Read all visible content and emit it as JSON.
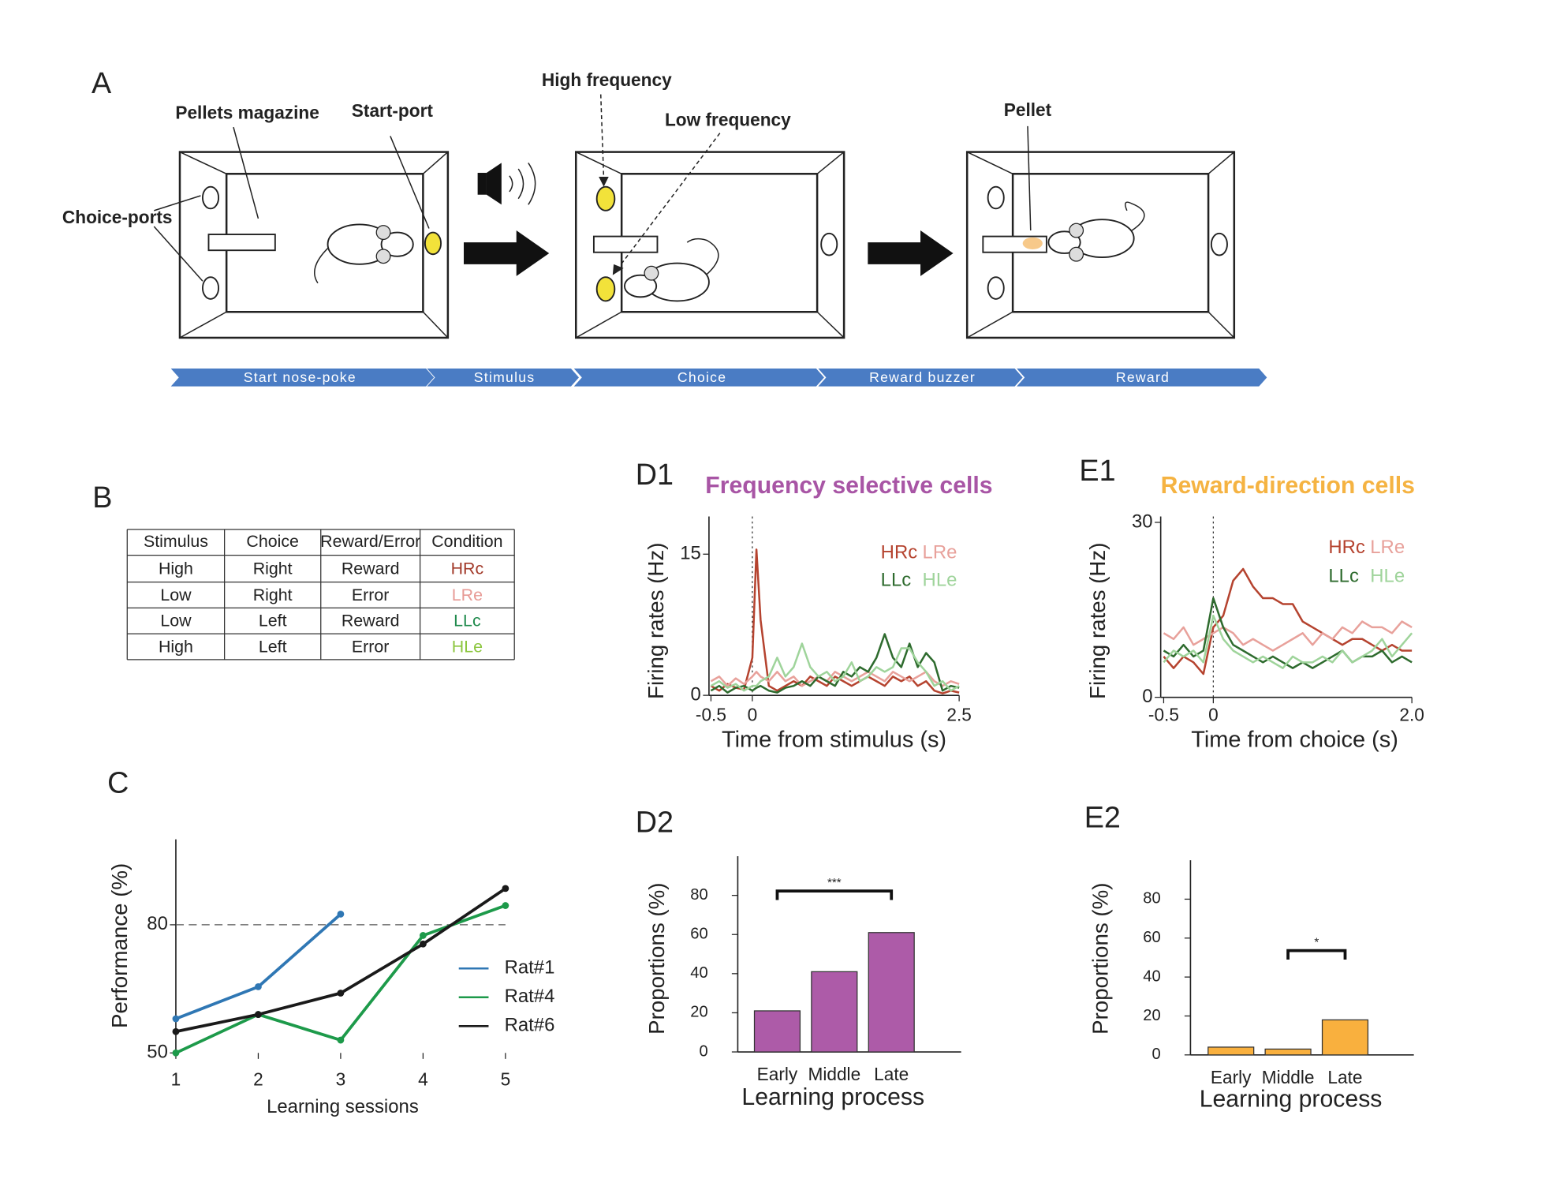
{
  "panel_labels": [
    "A",
    "B",
    "C",
    "D1",
    "E1",
    "D2",
    "E2"
  ],
  "diagram": {
    "labels": {
      "pellets_magazine": "Pellets magazine",
      "start_port": "Start-port",
      "choice_ports": "Choice-ports",
      "high_frequency": "High frequency",
      "low_frequency": "Low frequency",
      "pellet": "Pellet"
    },
    "timeline": [
      "Start nose-poke",
      "Stimulus",
      "Choice",
      "Reward buzzer",
      "Reward"
    ]
  },
  "table": {
    "header": [
      "Stimulus",
      "Choice",
      "Reward/Error",
      "Condition"
    ],
    "rows": [
      [
        "High",
        "Right",
        "Reward",
        "HRc"
      ],
      [
        "Low",
        "Right",
        "Error",
        "LRe"
      ],
      [
        "Low",
        "Left",
        "Reward",
        "LLc"
      ],
      [
        "High",
        "Left",
        "Error",
        "HLe"
      ]
    ],
    "condition_colors": [
      "#a23a2a",
      "#e79a95",
      "#1f8a4c",
      "#8cc63f"
    ]
  },
  "chart_data": [
    {
      "type": "line",
      "x_label": "Learning sessions",
      "y_label": "Performance (%)",
      "x": [
        1,
        2,
        3,
        4,
        5
      ],
      "xlim": [
        1,
        5
      ],
      "xticks": [
        1,
        2,
        3,
        4,
        5
      ],
      "ylim": [
        50,
        100
      ],
      "yticks": [
        50,
        80
      ],
      "reference_line": {
        "orientation": "horizontal",
        "value": 80,
        "style": "dashed"
      },
      "markers": true,
      "legend": "center right",
      "series": [
        {
          "name": "Rat#1",
          "color": "#2f77b4",
          "values": [
            58,
            65.5,
            82.5,
            null,
            null
          ]
        },
        {
          "name": "Rat#4",
          "color": "#1d9a4a",
          "values": [
            50,
            59,
            53,
            77.5,
            84.5
          ]
        },
        {
          "name": "Rat#6",
          "color": "#1a1a1a",
          "values": [
            55,
            59,
            64,
            75.5,
            88.5
          ]
        }
      ]
    },
    {
      "type": "line",
      "title": "Frequency selective cells",
      "title_color": "#a855a5",
      "x_label": "Time from stimulus (s)",
      "y_label": "Firing rates (Hz)",
      "x": [
        -0.5,
        -0.4,
        -0.3,
        -0.2,
        -0.1,
        0,
        0.05,
        0.1,
        0.2,
        0.3,
        0.4,
        0.5,
        0.6,
        0.7,
        0.8,
        0.9,
        1.0,
        1.1,
        1.2,
        1.3,
        1.4,
        1.5,
        1.6,
        1.7,
        1.8,
        1.9,
        2.0,
        2.1,
        2.2,
        2.3,
        2.4,
        2.5
      ],
      "xlim": [
        -0.5,
        2.5
      ],
      "xticks": [
        -0.5,
        0,
        2.5
      ],
      "ylim": [
        0,
        19
      ],
      "yticks": [
        0,
        15
      ],
      "reference_line": {
        "orientation": "vertical",
        "value": 0,
        "style": "dotted"
      },
      "legend": "upper right",
      "series": [
        {
          "name": "HRc",
          "color": "#b5432f",
          "values": [
            1,
            0.5,
            1.2,
            0.8,
            0.6,
            4,
            15.5,
            8,
            1,
            0.5,
            1,
            1.5,
            1,
            2,
            1.5,
            1,
            2,
            1.5,
            1,
            1.5,
            2,
            1.5,
            1,
            2,
            1.5,
            2,
            1,
            1.5,
            0.5,
            0.2,
            0.5,
            0.3
          ]
        },
        {
          "name": "LRe",
          "color": "#e8a19b",
          "values": [
            1.5,
            2,
            1,
            1.8,
            1.2,
            2,
            2.5,
            2,
            1.5,
            2.5,
            1.5,
            2,
            1,
            1.5,
            2,
            1.5,
            2.5,
            2,
            1.5,
            2,
            2.5,
            2,
            1.5,
            2.5,
            2,
            1.5,
            2,
            2.5,
            1.5,
            1,
            1.5,
            1.2
          ]
        },
        {
          "name": "LLc",
          "color": "#2e6b2e",
          "values": [
            0.5,
            1,
            0.3,
            0.8,
            1,
            0.5,
            0.8,
            1,
            0.5,
            0.3,
            0.8,
            1,
            1.5,
            1,
            2,
            1.5,
            1,
            2.5,
            2,
            3,
            2.5,
            4,
            6.5,
            4,
            3,
            5.5,
            3,
            4.5,
            3.5,
            0.5,
            1,
            0.8
          ]
        },
        {
          "name": "HLe",
          "color": "#9fd49b",
          "values": [
            1,
            1.5,
            0.8,
            1.2,
            0.5,
            1,
            1,
            1.5,
            2,
            4,
            2,
            3,
            5.5,
            3,
            2,
            2.5,
            1.5,
            2,
            3.5,
            1.5,
            2,
            3,
            2.5,
            3,
            5,
            5,
            3.5,
            2.5,
            1,
            1.5,
            0.5,
            1
          ]
        }
      ]
    },
    {
      "type": "line",
      "title": "Reward-direction cells",
      "title_color": "#f5b342",
      "x_label": "Time from choice (s)",
      "y_label": "Firing rates (Hz)",
      "x": [
        -0.5,
        -0.4,
        -0.3,
        -0.2,
        -0.1,
        0,
        0.1,
        0.2,
        0.3,
        0.4,
        0.5,
        0.6,
        0.7,
        0.8,
        0.9,
        1.0,
        1.1,
        1.2,
        1.3,
        1.4,
        1.5,
        1.6,
        1.7,
        1.8,
        1.9,
        2.0
      ],
      "xlim": [
        -0.5,
        2
      ],
      "xticks": [
        -0.5,
        0,
        {
          "value": 2,
          "label": "2.0"
        }
      ],
      "ylim": [
        0,
        31
      ],
      "yticks": [
        0,
        30
      ],
      "reference_line": {
        "orientation": "vertical",
        "value": 0,
        "style": "dotted"
      },
      "legend": "upper right",
      "series": [
        {
          "name": "HRc",
          "color": "#b5432f",
          "values": [
            7,
            5,
            7,
            6,
            4,
            12,
            14,
            20,
            22,
            19,
            17,
            17,
            16,
            16,
            13,
            12,
            11,
            10,
            9,
            10,
            10,
            9,
            8,
            9,
            8,
            8
          ]
        },
        {
          "name": "LRe",
          "color": "#e8a19b",
          "values": [
            11,
            10,
            12,
            9,
            10,
            11,
            12,
            11,
            9,
            10,
            9,
            8,
            9,
            10,
            11,
            9,
            11,
            10,
            12,
            11,
            13,
            12,
            12,
            11,
            13,
            12
          ]
        },
        {
          "name": "LLc",
          "color": "#2e6b2e",
          "values": [
            8,
            7,
            9,
            7,
            8,
            17,
            12,
            9,
            8,
            7,
            6,
            7,
            6,
            5,
            6,
            5,
            6,
            7,
            8,
            6,
            7,
            7,
            8,
            6,
            7,
            6
          ]
        },
        {
          "name": "HLe",
          "color": "#9fd49b",
          "values": [
            6,
            8,
            7,
            8,
            6,
            14,
            10,
            8,
            7,
            6,
            7,
            6,
            5,
            7,
            6,
            6,
            7,
            6,
            8,
            6,
            7,
            8,
            10,
            7,
            9,
            11
          ]
        }
      ]
    },
    {
      "type": "bar",
      "x_label": "Learning process",
      "y_label": "Proportions (%)",
      "color": "#ad5ba8",
      "categories": [
        "Early",
        "Middle",
        "Late"
      ],
      "values": [
        21,
        41,
        61
      ],
      "ylim": [
        0,
        100
      ],
      "yticks": [
        0,
        20,
        40,
        60,
        80
      ],
      "significance": {
        "from": 0,
        "to": 2,
        "label": "***"
      }
    },
    {
      "type": "bar",
      "x_label": "Learning process",
      "y_label": "Proportions (%)",
      "color": "#f9b03e",
      "categories": [
        "Early",
        "Middle",
        "Late"
      ],
      "values": [
        4,
        3,
        18
      ],
      "ylim": [
        0,
        100
      ],
      "yticks": [
        0,
        20,
        40,
        60,
        80
      ],
      "significance": {
        "from": 1,
        "to": 2,
        "label": "*"
      }
    }
  ]
}
